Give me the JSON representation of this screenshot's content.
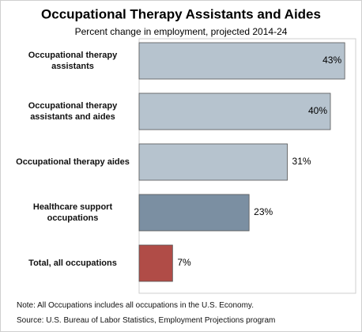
{
  "chart_data": {
    "type": "bar",
    "orientation": "horizontal",
    "title": "Occupational Therapy Assistants and Aides",
    "subtitle": "Percent change in employment, projected 2014-24",
    "categories": [
      "Occupational therapy assistants",
      "Occupational therapy assistants and aides",
      "Occupational therapy aides",
      "Healthcare support occupations",
      "Total, all occupations"
    ],
    "values": [
      43,
      40,
      31,
      23,
      7
    ],
    "value_labels": [
      "43%",
      "40%",
      "31%",
      "23%",
      "7%"
    ],
    "colors": [
      "#b6c3ce",
      "#b6c3ce",
      "#b6c3ce",
      "#7b8fa2",
      "#b04c47"
    ],
    "notes": [
      "Note: All Occupations includes all occupations in the U.S. Economy.",
      "Source: U.S. Bureau of Labor Statistics, Employment Projections program"
    ]
  }
}
